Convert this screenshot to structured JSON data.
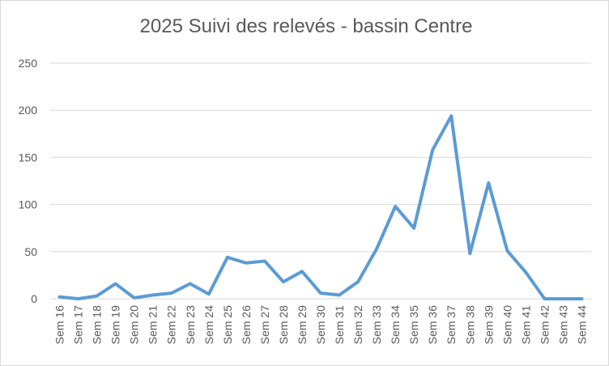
{
  "chart_data": {
    "type": "line",
    "title": "2025 Suivi des relevés - bassin Centre",
    "categories": [
      "Sem 16",
      "Sem 17",
      "Sem 18",
      "Sem 19",
      "Sem 20",
      "Sem 21",
      "Sem 22",
      "Sem 23",
      "Sem 24",
      "Sem 25",
      "Sem 26",
      "Sem 27",
      "Sem 28",
      "Sem 29",
      "Sem 30",
      "Sem 31",
      "Sem 32",
      "Sem 33",
      "Sem 34",
      "Sem 35",
      "Sem 36",
      "Sem 37",
      "Sem 38",
      "Sem 39",
      "Sem 40",
      "Sem 41",
      "Sem 42",
      "Sem 43",
      "Sem 44"
    ],
    "values": [
      2,
      0,
      3,
      16,
      1,
      4,
      6,
      16,
      5,
      44,
      38,
      40,
      18,
      29,
      6,
      4,
      18,
      53,
      98,
      75,
      158,
      194,
      48,
      123,
      51,
      28,
      0,
      0,
      0
    ],
    "color": "#5b9bd5",
    "ylim": [
      0,
      250
    ],
    "yticks": [
      0,
      50,
      100,
      150,
      200,
      250
    ],
    "grid": true
  }
}
